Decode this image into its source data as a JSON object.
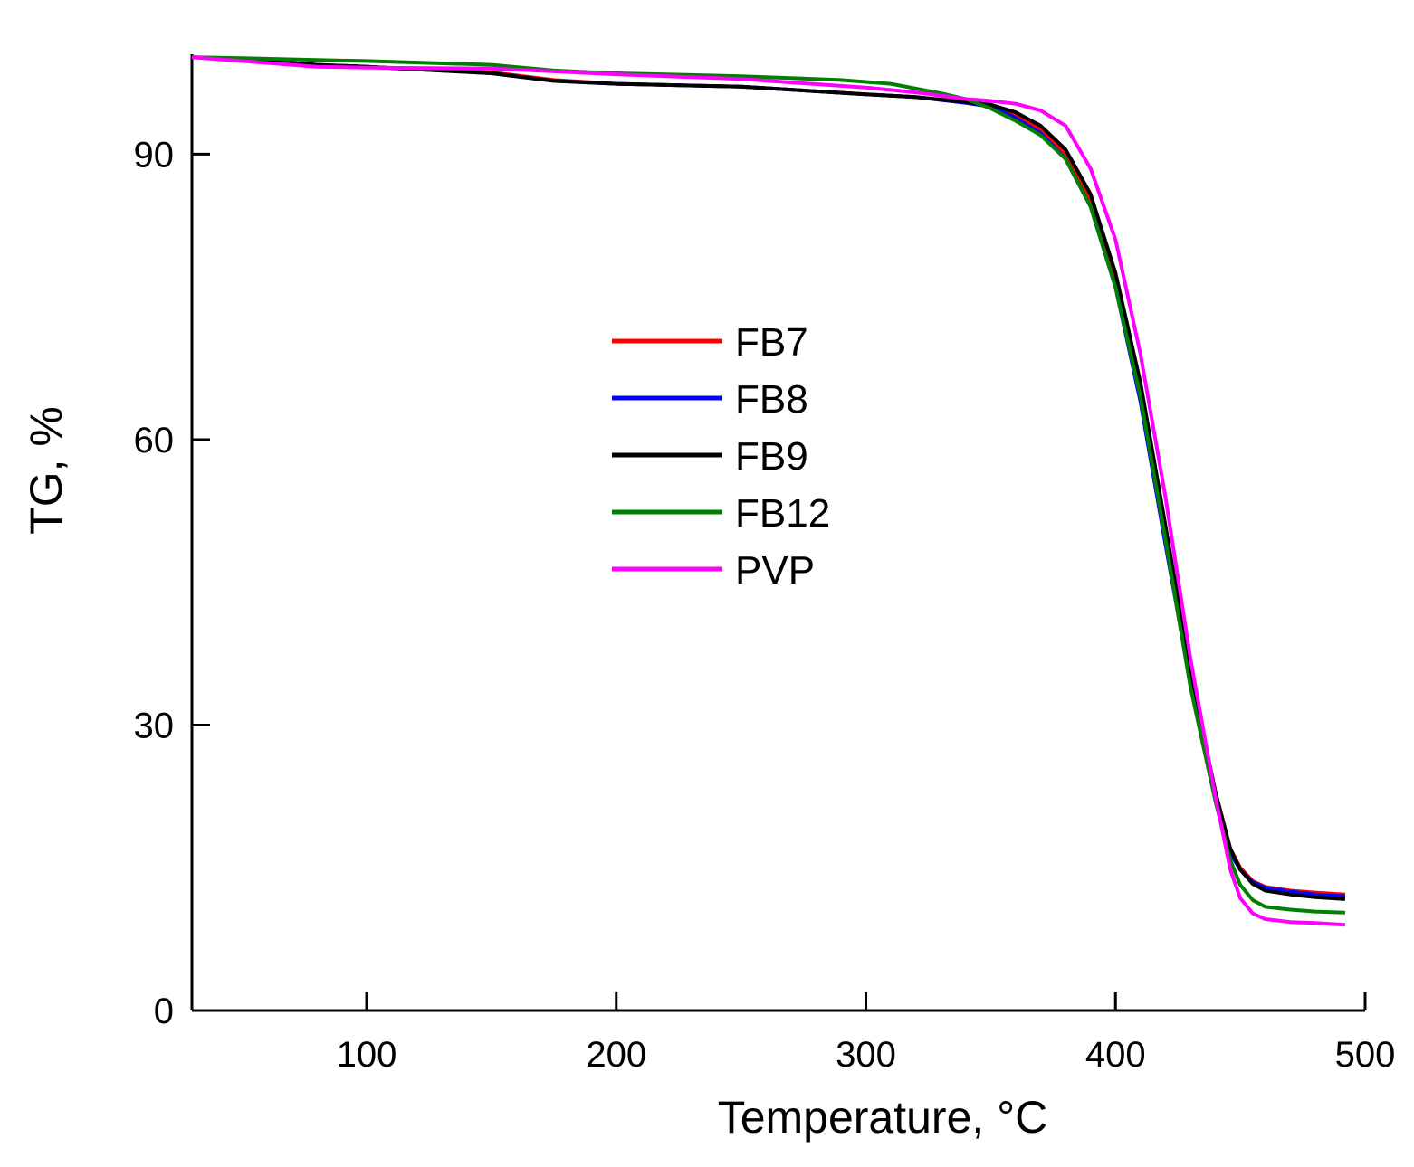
{
  "chart_data": {
    "type": "line",
    "title": "",
    "xlabel": "Temperature, °C",
    "ylabel": "TG, %",
    "xlim": [
      30,
      500
    ],
    "ylim": [
      0,
      100.5
    ],
    "xticks": [
      100,
      200,
      300,
      400,
      500
    ],
    "yticks": [
      0,
      30,
      60,
      90
    ],
    "grid": false,
    "legend_position": "center",
    "series": [
      {
        "name": "FB7",
        "color": "#ff0000",
        "points": [
          [
            30,
            100.2
          ],
          [
            50,
            100
          ],
          [
            80,
            99.4
          ],
          [
            100,
            99.2
          ],
          [
            150,
            98.6
          ],
          [
            175,
            97.8
          ],
          [
            200,
            97.4
          ],
          [
            250,
            97.1
          ],
          [
            300,
            96.3
          ],
          [
            320,
            96
          ],
          [
            340,
            95.4
          ],
          [
            350,
            95
          ],
          [
            360,
            94
          ],
          [
            370,
            92.6
          ],
          [
            380,
            90
          ],
          [
            390,
            85
          ],
          [
            400,
            76.5
          ],
          [
            410,
            65
          ],
          [
            420,
            50
          ],
          [
            430,
            35
          ],
          [
            440,
            23
          ],
          [
            446,
            17
          ],
          [
            450,
            15
          ],
          [
            455,
            13.6
          ],
          [
            460,
            13
          ],
          [
            470,
            12.6
          ],
          [
            480,
            12.4
          ],
          [
            492,
            12.2
          ]
        ]
      },
      {
        "name": "FB8",
        "color": "#0000ff",
        "points": [
          [
            30,
            100.2
          ],
          [
            50,
            100
          ],
          [
            80,
            99.4
          ],
          [
            100,
            99.2
          ],
          [
            150,
            98.5
          ],
          [
            175,
            97.7
          ],
          [
            200,
            97.4
          ],
          [
            250,
            97.1
          ],
          [
            300,
            96.3
          ],
          [
            320,
            96
          ],
          [
            340,
            95.4
          ],
          [
            350,
            95
          ],
          [
            360,
            93.8
          ],
          [
            370,
            92.2
          ],
          [
            380,
            89.5
          ],
          [
            390,
            84.5
          ],
          [
            400,
            76
          ],
          [
            410,
            64
          ],
          [
            420,
            49
          ],
          [
            430,
            34.5
          ],
          [
            440,
            22.5
          ],
          [
            446,
            16.5
          ],
          [
            450,
            14.8
          ],
          [
            455,
            13.5
          ],
          [
            460,
            12.9
          ],
          [
            470,
            12.5
          ],
          [
            480,
            12.2
          ],
          [
            492,
            12
          ]
        ]
      },
      {
        "name": "FB9",
        "color": "#000000",
        "points": [
          [
            30,
            100.2
          ],
          [
            50,
            100
          ],
          [
            80,
            99.4
          ],
          [
            100,
            99.2
          ],
          [
            150,
            98.5
          ],
          [
            175,
            97.7
          ],
          [
            200,
            97.4
          ],
          [
            250,
            97.1
          ],
          [
            300,
            96.3
          ],
          [
            320,
            96
          ],
          [
            340,
            95.5
          ],
          [
            350,
            95.2
          ],
          [
            360,
            94.4
          ],
          [
            370,
            93
          ],
          [
            380,
            90.5
          ],
          [
            390,
            85.8
          ],
          [
            400,
            77.5
          ],
          [
            410,
            66
          ],
          [
            420,
            51
          ],
          [
            430,
            35.5
          ],
          [
            440,
            23
          ],
          [
            446,
            17
          ],
          [
            450,
            14.8
          ],
          [
            455,
            13.3
          ],
          [
            460,
            12.6
          ],
          [
            470,
            12.2
          ],
          [
            480,
            11.9
          ],
          [
            492,
            11.7
          ]
        ]
      },
      {
        "name": "FB12",
        "color": "#008000",
        "points": [
          [
            30,
            100.2
          ],
          [
            50,
            100.1
          ],
          [
            80,
            99.9
          ],
          [
            100,
            99.8
          ],
          [
            150,
            99.4
          ],
          [
            175,
            98.8
          ],
          [
            200,
            98.5
          ],
          [
            250,
            98.2
          ],
          [
            290,
            97.8
          ],
          [
            310,
            97.4
          ],
          [
            330,
            96.4
          ],
          [
            340,
            95.8
          ],
          [
            350,
            94.8
          ],
          [
            360,
            93.5
          ],
          [
            370,
            92
          ],
          [
            380,
            89.5
          ],
          [
            390,
            84.5
          ],
          [
            400,
            76
          ],
          [
            410,
            64.5
          ],
          [
            420,
            49.5
          ],
          [
            430,
            34
          ],
          [
            440,
            22
          ],
          [
            446,
            15.8
          ],
          [
            450,
            13.2
          ],
          [
            455,
            11.6
          ],
          [
            460,
            10.9
          ],
          [
            470,
            10.6
          ],
          [
            480,
            10.4
          ],
          [
            492,
            10.3
          ]
        ]
      },
      {
        "name": "PVP",
        "color": "#ff00ff",
        "points": [
          [
            30,
            100.2
          ],
          [
            50,
            99.8
          ],
          [
            80,
            99.2
          ],
          [
            100,
            99.1
          ],
          [
            150,
            99
          ],
          [
            175,
            98.7
          ],
          [
            200,
            98.4
          ],
          [
            250,
            97.9
          ],
          [
            300,
            97
          ],
          [
            320,
            96.5
          ],
          [
            340,
            95.8
          ],
          [
            350,
            95.6
          ],
          [
            360,
            95.3
          ],
          [
            370,
            94.6
          ],
          [
            380,
            93
          ],
          [
            390,
            88.5
          ],
          [
            400,
            81
          ],
          [
            410,
            69
          ],
          [
            420,
            54
          ],
          [
            430,
            37
          ],
          [
            440,
            22.5
          ],
          [
            446,
            14.8
          ],
          [
            450,
            11.8
          ],
          [
            455,
            10.2
          ],
          [
            460,
            9.6
          ],
          [
            470,
            9.3
          ],
          [
            480,
            9.2
          ],
          [
            492,
            9
          ]
        ]
      }
    ]
  }
}
